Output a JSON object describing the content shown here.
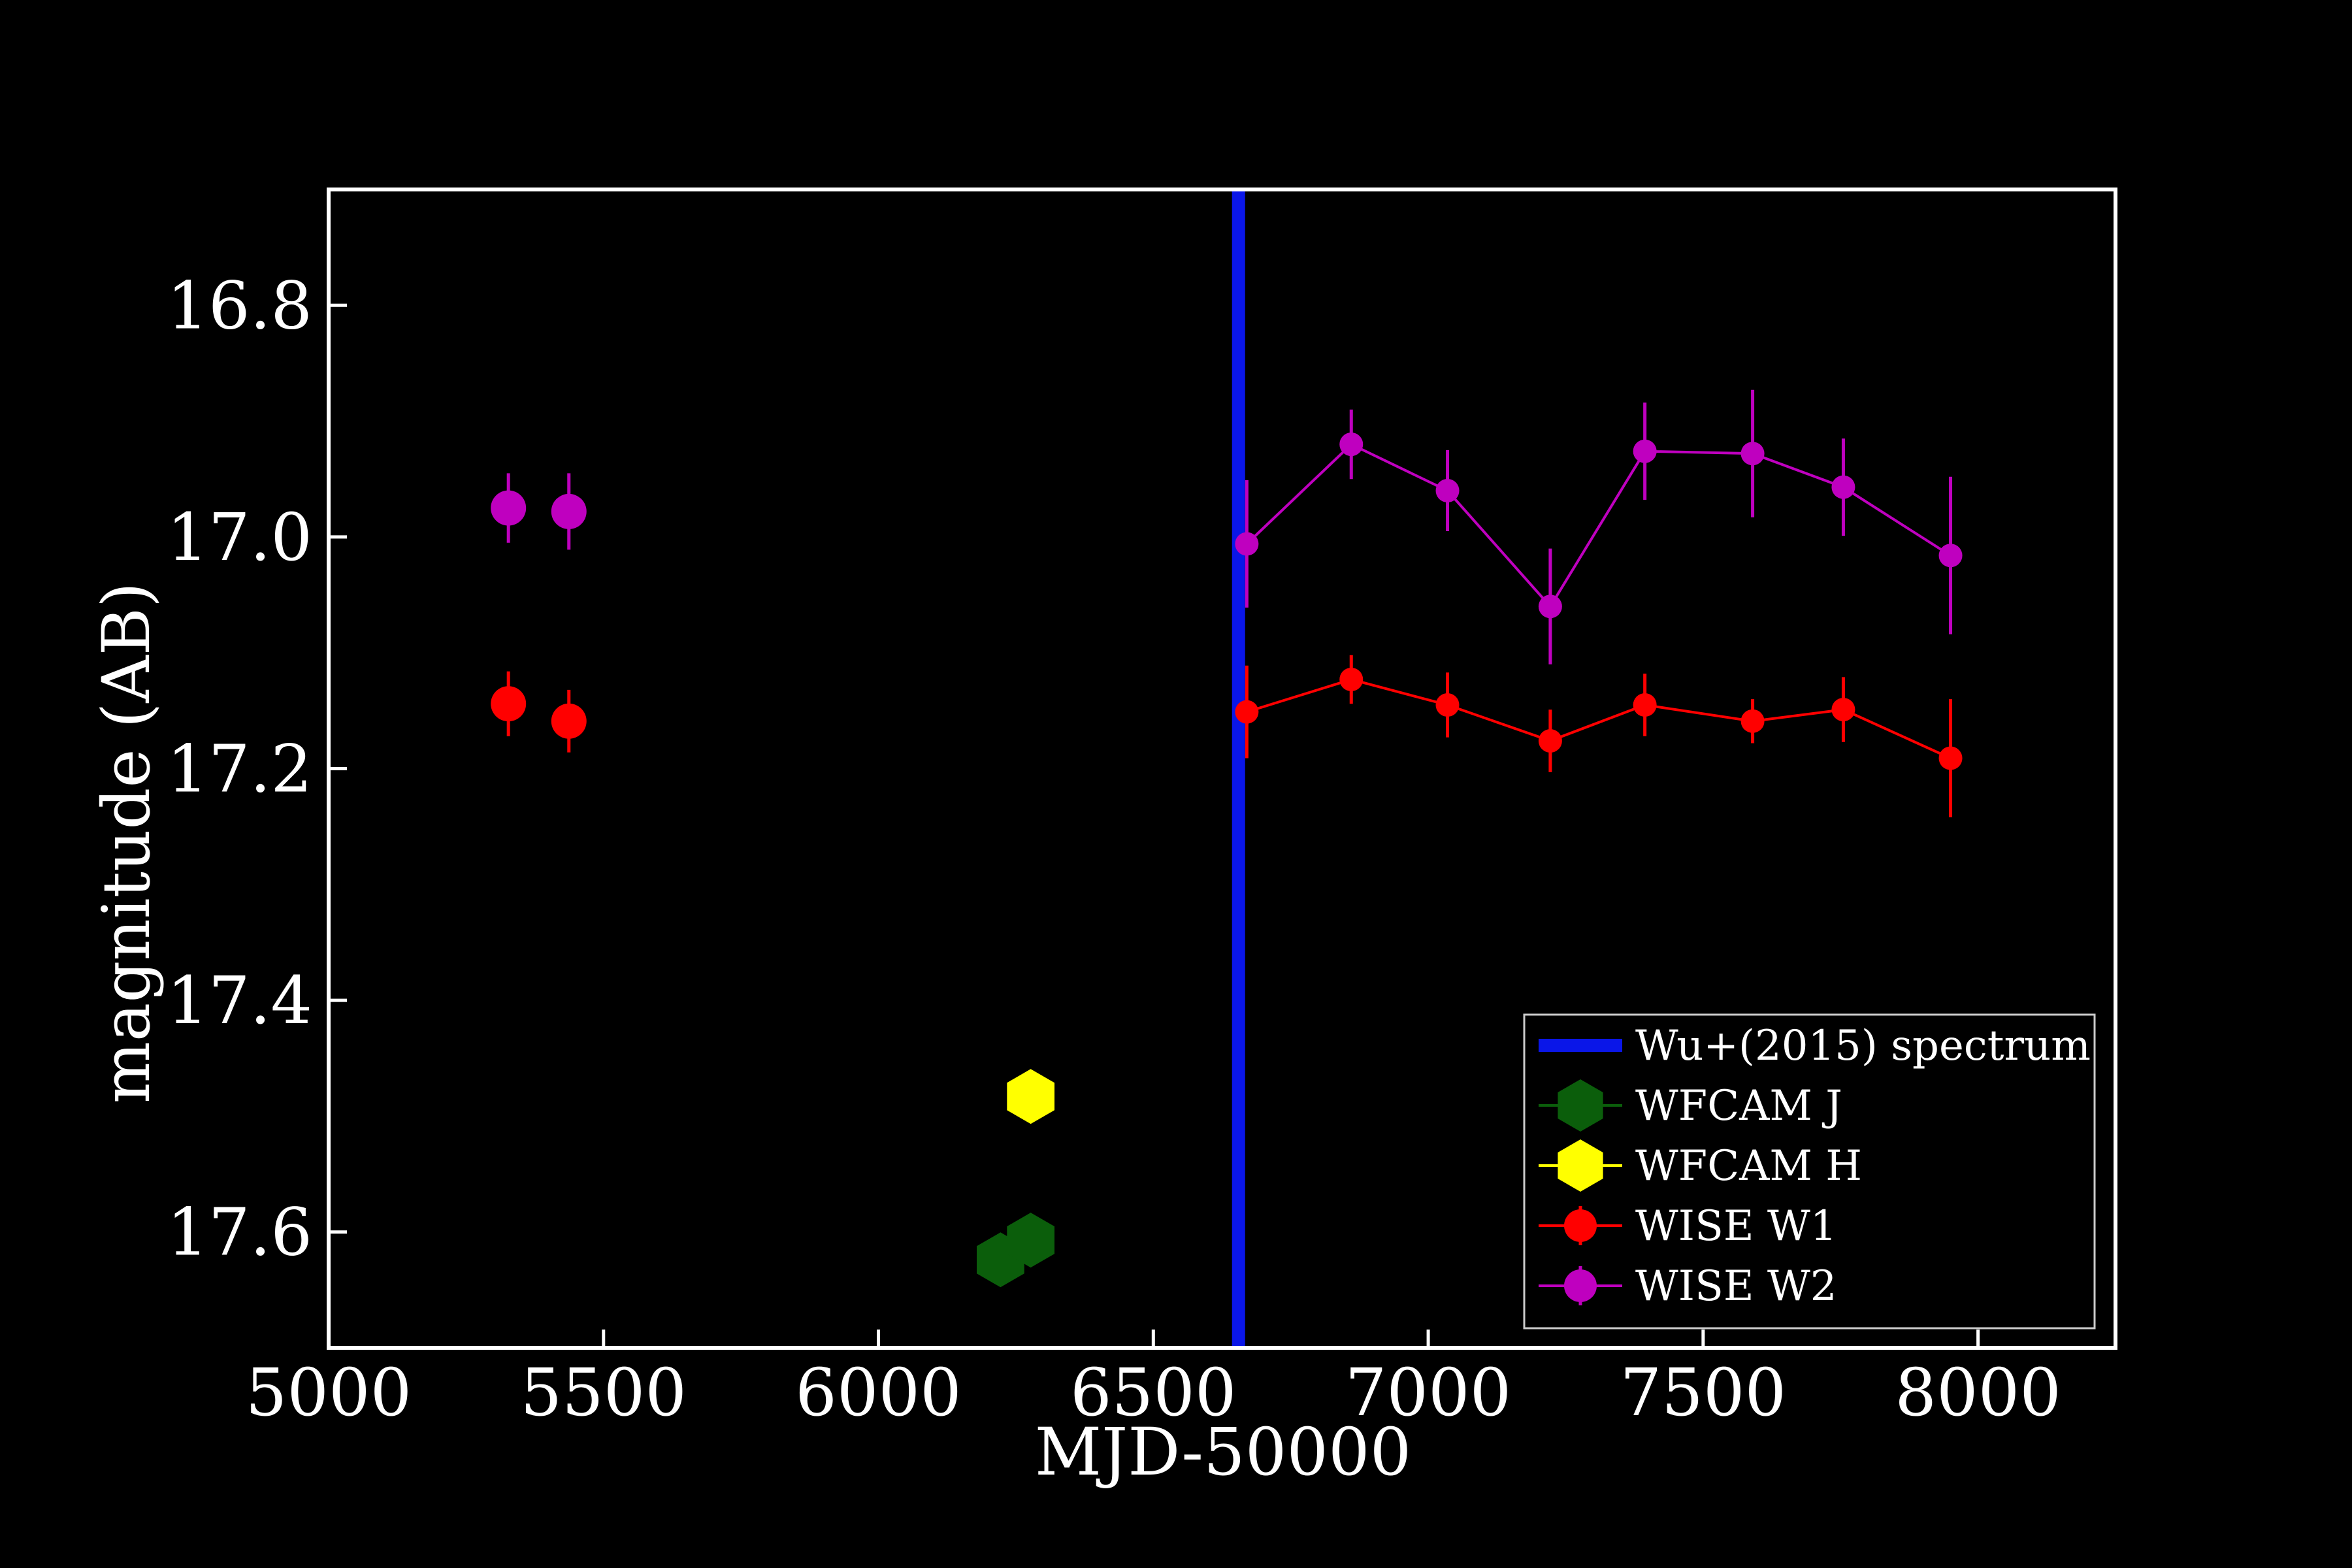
{
  "chart_data": {
    "type": "scatter",
    "xlabel": "MJD-50000",
    "ylabel": "magnitude (AB)",
    "xlim": [
      5000,
      8250
    ],
    "ylim": [
      17.7,
      16.7
    ],
    "y_inverted": true,
    "xticks": [
      5000,
      5500,
      6000,
      6500,
      7000,
      7500,
      8000
    ],
    "yticks": [
      16.8,
      17.0,
      17.2,
      17.4,
      17.6
    ],
    "xtick_labels": [
      "5000",
      "5500",
      "6000",
      "6500",
      "7000",
      "7500",
      "8000"
    ],
    "ytick_labels": [
      "16.8",
      "17.0",
      "17.2",
      "17.4",
      "17.6"
    ],
    "legend_position": "lower right",
    "background": "#000000",
    "foreground": "#ffffff",
    "vline": {
      "name": "Wu+(2015) spectrum",
      "x": 6655,
      "color": "#0a16e8"
    },
    "series": [
      {
        "name": "WFCAM J",
        "color": "#0b5e0b",
        "marker": "hexagon",
        "line": false,
        "points": [
          {
            "x": 6222,
            "y": 17.624,
            "err": 0.0
          },
          {
            "x": 6277,
            "y": 17.607,
            "err": 0.0
          }
        ]
      },
      {
        "name": "WFCAM H",
        "color": "#ffff00",
        "marker": "hexagon",
        "line": false,
        "points": [
          {
            "x": 6277,
            "y": 17.483,
            "err": 0.0
          }
        ]
      },
      {
        "name": "WISE W1",
        "color": "#ff0000",
        "marker": "circle",
        "line": false,
        "points": [
          {
            "x": 5327,
            "y": 17.144,
            "err": 0.028
          },
          {
            "x": 5437,
            "y": 17.159,
            "err": 0.027
          }
        ]
      },
      {
        "name": "WISE W2",
        "color": "#bf00bf",
        "marker": "circle",
        "line": false,
        "points": [
          {
            "x": 5327,
            "y": 16.975,
            "err": 0.03
          },
          {
            "x": 5437,
            "y": 16.978,
            "err": 0.033
          }
        ]
      },
      {
        "name": "WISE W1",
        "color": "#ff0000",
        "marker": "circle-small",
        "line": true,
        "points": [
          {
            "x": 6670,
            "y": 17.151,
            "err": 0.04
          },
          {
            "x": 6860,
            "y": 17.123,
            "err": 0.021
          },
          {
            "x": 7035,
            "y": 17.145,
            "err": 0.028
          },
          {
            "x": 7222,
            "y": 17.176,
            "err": 0.027
          },
          {
            "x": 7394,
            "y": 17.145,
            "err": 0.027
          },
          {
            "x": 7590,
            "y": 17.159,
            "err": 0.019
          },
          {
            "x": 7755,
            "y": 17.149,
            "err": 0.028
          },
          {
            "x": 7950,
            "y": 17.191,
            "err": 0.051
          }
        ]
      },
      {
        "name": "WISE W2",
        "color": "#bf00bf",
        "marker": "circle-small",
        "line": true,
        "points": [
          {
            "x": 6670,
            "y": 17.006,
            "err": 0.055
          },
          {
            "x": 6860,
            "y": 16.92,
            "err": 0.03
          },
          {
            "x": 7035,
            "y": 16.96,
            "err": 0.035
          },
          {
            "x": 7222,
            "y": 17.06,
            "err": 0.05
          },
          {
            "x": 7394,
            "y": 16.926,
            "err": 0.042
          },
          {
            "x": 7590,
            "y": 16.928,
            "err": 0.055
          },
          {
            "x": 7755,
            "y": 16.957,
            "err": 0.042
          },
          {
            "x": 7950,
            "y": 17.016,
            "err": 0.068
          }
        ]
      }
    ],
    "legend": [
      {
        "label": "Wu+(2015) spectrum",
        "kind": "thick-line",
        "color": "#0a16e8"
      },
      {
        "label": "WFCAM J",
        "kind": "hexagon",
        "color": "#0b5e0b"
      },
      {
        "label": "WFCAM H",
        "kind": "hexagon",
        "color": "#ffff00"
      },
      {
        "label": "WISE W1",
        "kind": "circle",
        "color": "#ff0000"
      },
      {
        "label": "WISE W2",
        "kind": "circle",
        "color": "#bf00bf"
      }
    ]
  }
}
